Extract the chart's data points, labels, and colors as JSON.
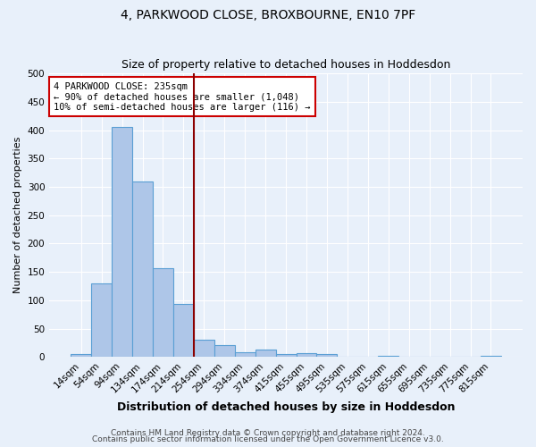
{
  "title1": "4, PARKWOOD CLOSE, BROXBOURNE, EN10 7PF",
  "title2": "Size of property relative to detached houses in Hoddesdon",
  "xlabel": "Distribution of detached houses by size in Hoddesdon",
  "ylabel": "Number of detached properties",
  "bar_labels": [
    "14sqm",
    "54sqm",
    "94sqm",
    "134sqm",
    "174sqm",
    "214sqm",
    "254sqm",
    "294sqm",
    "334sqm",
    "374sqm",
    "415sqm",
    "455sqm",
    "495sqm",
    "535sqm",
    "575sqm",
    "615sqm",
    "655sqm",
    "695sqm",
    "735sqm",
    "775sqm",
    "815sqm"
  ],
  "bar_values": [
    5,
    130,
    405,
    310,
    157,
    93,
    30,
    21,
    9,
    13,
    5,
    7,
    5,
    0,
    0,
    3,
    0,
    0,
    0,
    0,
    3
  ],
  "bar_color": "#aec6e8",
  "bar_edge_color": "#5a9fd4",
  "bg_color": "#e8f0fa",
  "grid_color": "#ffffff",
  "vline_x": 5.525,
  "vline_color": "#8b0000",
  "annotation_text": "4 PARKWOOD CLOSE: 235sqm\n← 90% of detached houses are smaller (1,048)\n10% of semi-detached houses are larger (116) →",
  "annotation_box_color": "#ffffff",
  "annotation_box_edge": "#cc0000",
  "footer1": "Contains HM Land Registry data © Crown copyright and database right 2024.",
  "footer2": "Contains public sector information licensed under the Open Government Licence v3.0.",
  "ylim": [
    0,
    500
  ],
  "yticks": [
    0,
    50,
    100,
    150,
    200,
    250,
    300,
    350,
    400,
    450,
    500
  ],
  "title1_fontsize": 10,
  "title2_fontsize": 9,
  "xlabel_fontsize": 9,
  "ylabel_fontsize": 8,
  "tick_fontsize": 7.5,
  "footer_fontsize": 6.5,
  "ann_fontsize": 7.5
}
